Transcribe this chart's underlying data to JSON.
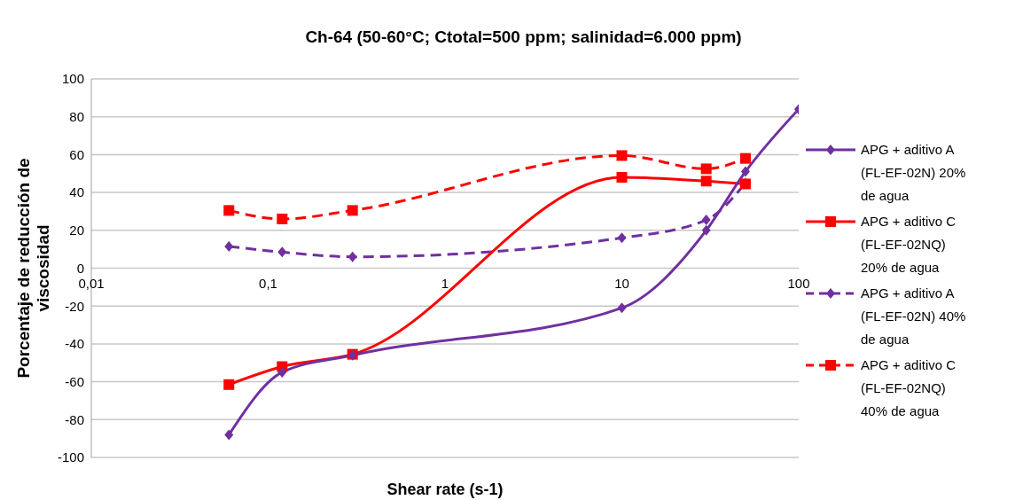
{
  "chart_data": {
    "type": "line",
    "title": "Ch-64 (50-60°C; Ctotal=500 ppm; salinidad=6.000 ppm)",
    "xlabel": "Shear rate (s-1)",
    "ylabel": "Porcentaje de reducción de viscosidad",
    "log": "x",
    "grid": "y",
    "legend": "right",
    "xlim": [
      0.01,
      100
    ],
    "xticks": [
      {
        "value": 0.01,
        "label": "0,01"
      },
      {
        "value": 0.1,
        "label": "0,1"
      },
      1,
      10,
      100
    ],
    "ylim": [
      -100,
      100
    ],
    "yticks": [
      -100,
      -80,
      -60,
      -40,
      -20,
      0,
      20,
      40,
      60,
      80,
      100
    ],
    "x": [
      0.06,
      0.12,
      0.3,
      10,
      30,
      50,
      100
    ],
    "series": [
      {
        "name": "APG + aditivo A (FL-EF-02N) 20% de agua",
        "color": "#7030a0",
        "marker": "diamond",
        "line_style": "solid",
        "values": [
          -88,
          -55,
          -46,
          -21,
          20,
          51,
          84
        ]
      },
      {
        "name": "APG + aditivo C (FL-EF-02NQ) 20% de agua",
        "color": "#ff0000",
        "marker": "square",
        "line_style": "solid",
        "x": [
          0.06,
          0.12,
          0.3,
          10,
          30,
          50
        ],
        "values": [
          -61.5,
          -52,
          -45.5,
          48,
          46,
          44.5
        ]
      },
      {
        "name": "APG + aditivo A (FL-EF-02N) 40% de agua",
        "color": "#7030a0",
        "marker": "diamond",
        "line_style": "dashed",
        "x": [
          0.06,
          0.12,
          0.3,
          10,
          30,
          50
        ],
        "values": [
          11.5,
          8.5,
          6,
          16,
          25.5,
          45
        ]
      },
      {
        "name": "APG + aditivo C (FL-EF-02NQ) 40% de agua",
        "color": "#ff0000",
        "marker": "square",
        "line_style": "dashed",
        "x": [
          0.06,
          0.12,
          0.3,
          10,
          30,
          50
        ],
        "values": [
          30.5,
          26,
          30.5,
          59.5,
          52.5,
          58
        ]
      }
    ]
  }
}
